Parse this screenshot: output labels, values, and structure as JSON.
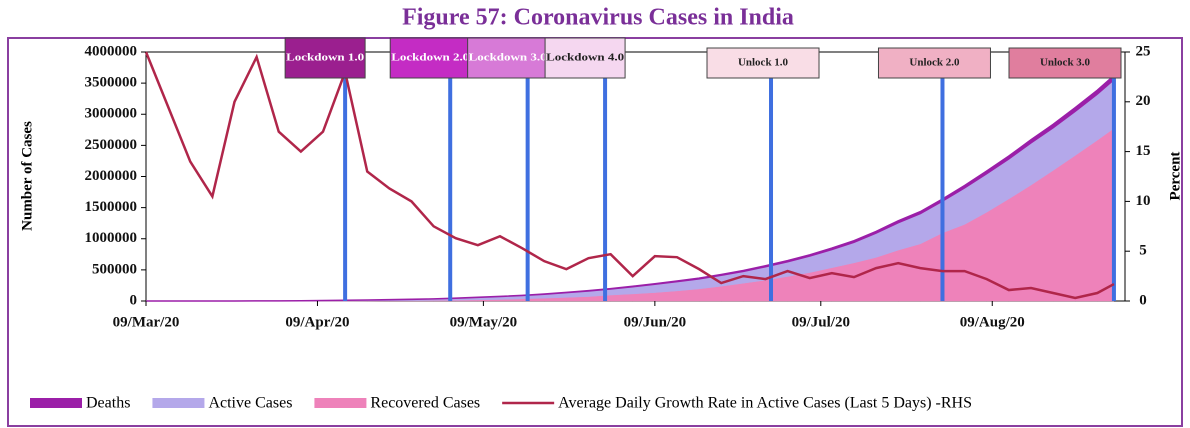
{
  "chart_data": {
    "type": "stacked-area-line",
    "title": "Figure 57: Coronavirus Cases in India",
    "y_label": "Number of Cases",
    "y2_label": "Percent",
    "x": [
      "2020-03-09",
      "2020-03-13",
      "2020-03-17",
      "2020-03-21",
      "2020-03-25",
      "2020-03-29",
      "2020-04-02",
      "2020-04-06",
      "2020-04-10",
      "2020-04-14",
      "2020-04-18",
      "2020-04-22",
      "2020-04-26",
      "2020-04-30",
      "2020-05-04",
      "2020-05-08",
      "2020-05-12",
      "2020-05-16",
      "2020-05-20",
      "2020-05-24",
      "2020-05-28",
      "2020-06-01",
      "2020-06-05",
      "2020-06-09",
      "2020-06-13",
      "2020-06-17",
      "2020-06-21",
      "2020-06-25",
      "2020-06-29",
      "2020-07-03",
      "2020-07-07",
      "2020-07-11",
      "2020-07-15",
      "2020-07-19",
      "2020-07-23",
      "2020-07-27",
      "2020-07-31",
      "2020-08-04",
      "2020-08-08",
      "2020-08-12",
      "2020-08-16",
      "2020-08-20",
      "2020-08-24",
      "2020-08-28",
      "2020-08-31"
    ],
    "series": [
      {
        "name": "Deaths",
        "type": "area",
        "color": "#9b1fa8",
        "values": [
          0,
          2,
          3,
          7,
          13,
          30,
          70,
          140,
          250,
          390,
          520,
          680,
          880,
          1150,
          1570,
          2000,
          2420,
          2870,
          3440,
          4020,
          4710,
          5600,
          6650,
          7750,
          9200,
          12240,
          13700,
          15300,
          16900,
          18650,
          20650,
          22700,
          24900,
          27500,
          30600,
          32100,
          35000,
          38900,
          42500,
          46100,
          50000,
          53900,
          57500,
          61500,
          64500
        ]
      },
      {
        "name": "Active Cases",
        "type": "area",
        "color": "#b4a8ea",
        "values": [
          40,
          76,
          120,
          300,
          592,
          970,
          2240,
          4260,
          6550,
          9710,
          12680,
          16320,
          20820,
          24750,
          32130,
          39900,
          47480,
          53930,
          63260,
          77080,
          89990,
          97600,
          115550,
          133650,
          149300,
          160360,
          176000,
          189500,
          215100,
          235450,
          264950,
          292200,
          331200,
          390400,
          440200,
          486300,
          510000,
          587100,
          620500,
          642900,
          678000,
          686100,
          710500,
          742500,
          782500
        ]
      },
      {
        "name": "Recovered Cases",
        "type": "area",
        "color": "#ee82ba",
        "values": [
          3,
          4,
          14,
          23,
          45,
          100,
          190,
          400,
          800,
          1300,
          2500,
          4400,
          6200,
          9000,
          12700,
          17800,
          24400,
          34100,
          45300,
          57700,
          71100,
          95500,
          114000,
          135200,
          162400,
          194300,
          237200,
          285600,
          334800,
          394200,
          456800,
          534600,
          612800,
          700100,
          817200,
          917600,
          1094000,
          1230000,
          1426000,
          1640000,
          1862000,
          2097000,
          2338000,
          2583000,
          2774000
        ]
      },
      {
        "name": "Average Daily Growth Rate in Active Cases (Last 5 Days) -RHS",
        "type": "line",
        "axis": "y2",
        "color": "#b0264a",
        "values": [
          25,
          19.5,
          14,
          10.5,
          20,
          24.5,
          17,
          15,
          17,
          23,
          13,
          11.3,
          10,
          7.5,
          6.3,
          5.6,
          6.5,
          5.3,
          4,
          3.2,
          4.3,
          4.7,
          2.5,
          4.5,
          4.4,
          3.2,
          1.8,
          2.5,
          2.2,
          3,
          2.3,
          2.8,
          2.4,
          3.3,
          3.8,
          3.3,
          3,
          3,
          2.2,
          1.1,
          1.3,
          0.8,
          0.3,
          0.8,
          1.7
        ]
      }
    ],
    "events": [
      {
        "label": "Lockdown 1.0",
        "date": "2020-04-14",
        "color": "#9b1f8f"
      },
      {
        "label": "Lockdown 2.0",
        "date": "2020-05-03",
        "color": "#c42cc4"
      },
      {
        "label": "Lockdown 3.0",
        "date": "2020-05-17",
        "color": "#d77ad7"
      },
      {
        "label": "Lockdown 4.0",
        "date": "2020-05-31",
        "color": "#f5d7f0"
      },
      {
        "label": "Unlock 1.0",
        "date": "2020-06-30",
        "color": "#f9dde6"
      },
      {
        "label": "Unlock 2.0",
        "date": "2020-07-31",
        "color": "#f0b0c4"
      },
      {
        "label": "Unlock 3.0",
        "date": "2020-08-31",
        "color": "#e07e9e"
      }
    ],
    "event_line_color": "#3f6fe0",
    "xlim": [
      "2020-03-09",
      "2020-09-02"
    ],
    "xticks": [
      {
        "value": "2020-03-09",
        "label": "09/Mar/20"
      },
      {
        "value": "2020-04-09",
        "label": "09/Apr/20"
      },
      {
        "value": "2020-05-09",
        "label": "09/May/20"
      },
      {
        "value": "2020-06-09",
        "label": "09/Jun/20"
      },
      {
        "value": "2020-07-09",
        "label": "09/Jul/20"
      },
      {
        "value": "2020-08-09",
        "label": "09/Aug/20"
      }
    ],
    "ylim": [
      0,
      4000000
    ],
    "yticks": [
      0,
      500000,
      1000000,
      1500000,
      2000000,
      2500000,
      3000000,
      3500000,
      4000000
    ],
    "y2lim": [
      0,
      25
    ],
    "y2ticks": [
      0,
      5,
      10,
      15,
      20,
      25
    ],
    "grid": false,
    "legend": "bottom"
  }
}
